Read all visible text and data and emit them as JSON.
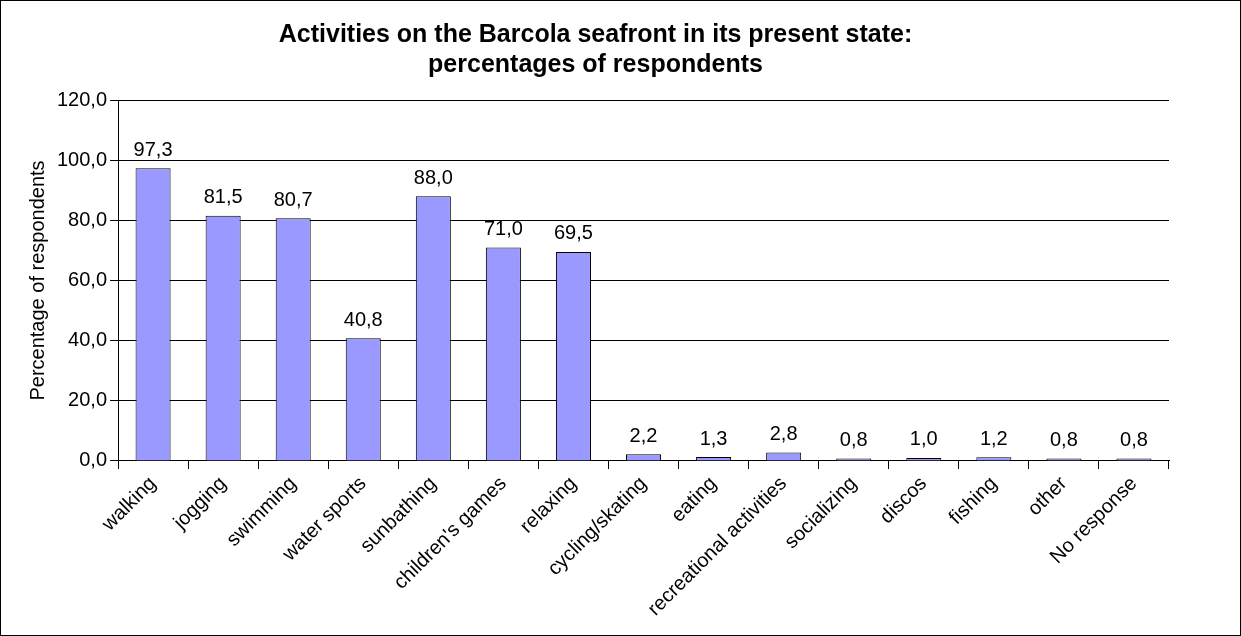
{
  "chart_data": {
    "type": "bar",
    "title": "Activities on the Barcola seafront in its present state:\npercentages of respondents",
    "ylabel": "Percentage of respondents",
    "categories": [
      "walking",
      "jogging",
      "swimming",
      "water sports",
      "sunbathing",
      "children's games",
      "relaxing",
      "cycling/skating",
      "eating",
      "recreational activities",
      "socializing",
      "discos",
      "fishing",
      "other",
      "No response"
    ],
    "values": [
      97.3,
      81.5,
      80.7,
      40.8,
      88.0,
      71.0,
      69.5,
      2.2,
      1.3,
      2.8,
      0.8,
      1.0,
      1.2,
      0.8,
      0.8
    ],
    "value_labels": [
      "97,3",
      "81,5",
      "80,7",
      "40,8",
      "88,0",
      "71,0",
      "69,5",
      "2,2",
      "1,3",
      "2,8",
      "0,8",
      "1,0",
      "1,2",
      "0,8",
      "0,8"
    ],
    "color": "#9999ff",
    "ylim": [
      0,
      120
    ],
    "yticks": [
      {
        "value": 0,
        "label": "0,0"
      },
      {
        "value": 20,
        "label": "20,0"
      },
      {
        "value": 40,
        "label": "40,0"
      },
      {
        "value": 60,
        "label": "60,0"
      },
      {
        "value": 80,
        "label": "80,0"
      },
      {
        "value": 100,
        "label": "100,0"
      },
      {
        "value": 120,
        "label": "120,0"
      }
    ],
    "grid": "y",
    "legend": false
  }
}
